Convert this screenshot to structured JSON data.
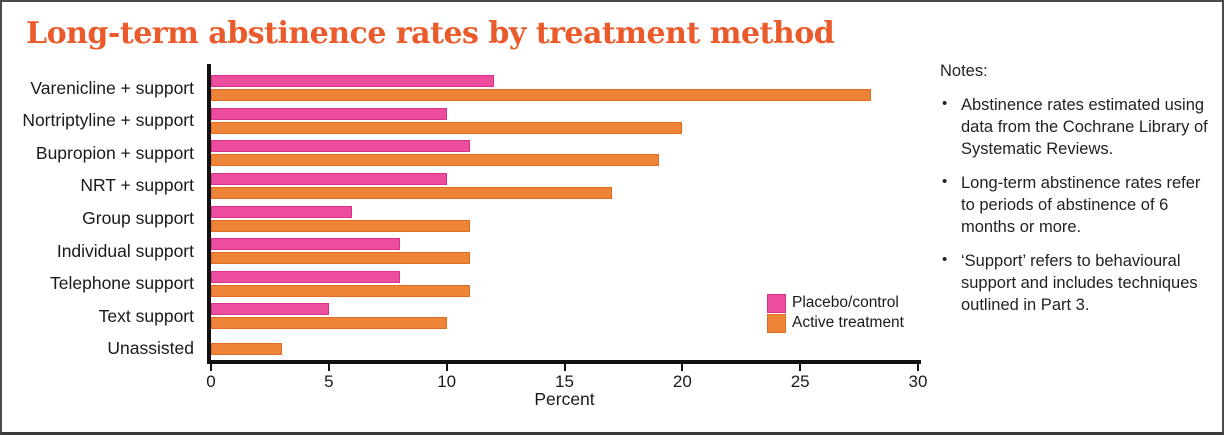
{
  "title": "Long-term abstinence rates by treatment method",
  "chart_data": {
    "type": "bar",
    "orientation": "horizontal",
    "title": "Long-term abstinence rates by treatment method",
    "categories": [
      "Varenicline + support",
      "Nortriptyline + support",
      "Bupropion + support",
      "NRT + support",
      "Group support",
      "Individual support",
      "Telephone support",
      "Text support",
      "Unassisted"
    ],
    "series": [
      {
        "name": "Placebo/control",
        "color": "#ed4d9d",
        "edge": "#dd2f8c",
        "values": [
          12,
          10,
          11,
          10,
          6,
          8,
          8,
          5,
          null
        ]
      },
      {
        "name": "Active treatment",
        "color": "#ee8438",
        "edge": "#e06e22",
        "values": [
          28,
          20,
          19,
          17,
          11,
          11,
          11,
          10,
          3
        ]
      }
    ],
    "xlabel": "Percent",
    "xlim": [
      0,
      30
    ],
    "xticks": [
      0,
      5,
      10,
      15,
      20,
      25,
      30
    ],
    "grid": "off",
    "legend_position": "inside-right"
  },
  "legend": {
    "items": [
      {
        "label": "Placebo/control",
        "color": "#ed4d9d",
        "edge": "#dd2f8c"
      },
      {
        "label": "Active treatment",
        "color": "#ee8438",
        "edge": "#e06e22"
      }
    ]
  },
  "notes": {
    "heading": "Notes:",
    "bullet": "•",
    "items": [
      "Abstinence rates estimated using data from the Cochrane Library of Systematic Reviews.",
      "Long-term abstinence rates refer to periods of abstinence of 6 months or more.",
      "‘Support’ refers to behavioural support and includes techniques outlined in Part 3."
    ]
  },
  "colors": {
    "title": "#ea5a2a",
    "axis": "#111111",
    "text": "#231f20",
    "frame_border": "#4a4a4a"
  }
}
